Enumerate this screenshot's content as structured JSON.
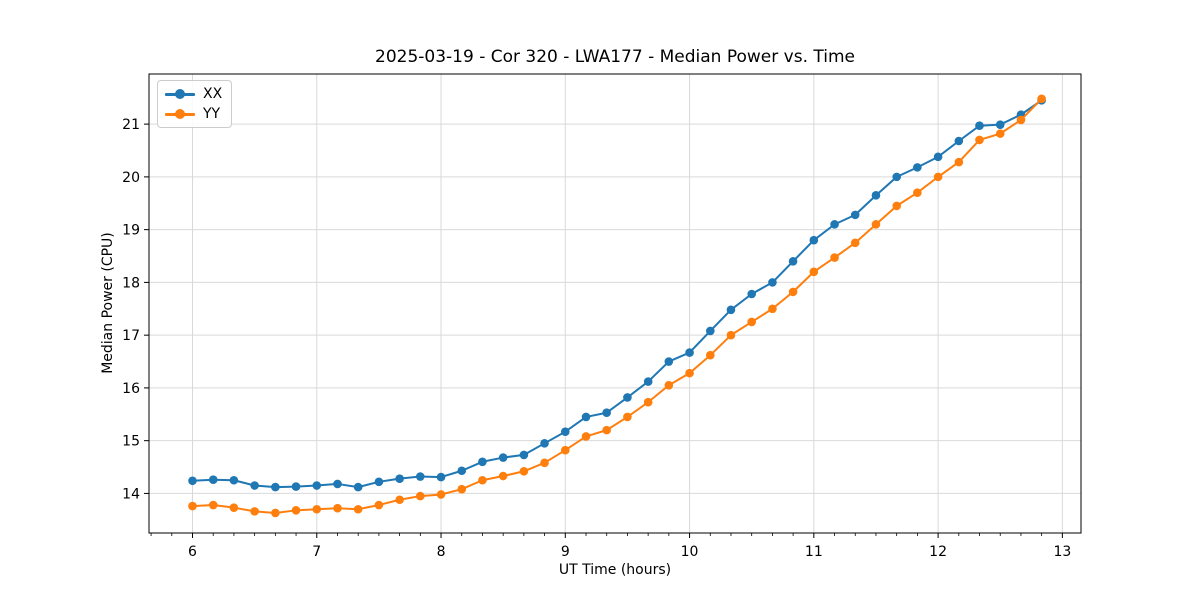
{
  "figure": {
    "background": "#ffffff",
    "axis_color": "#000000",
    "grid_color": "#d9d9d9"
  },
  "chart_data": {
    "type": "line",
    "title": "2025-03-19 - Cor 320 - LWA177 - Median Power vs. Time",
    "xlabel": "UT Time (hours)",
    "ylabel": "Median Power (CPU)",
    "xlim": [
      5.65,
      13.15
    ],
    "ylim": [
      13.25,
      21.95
    ],
    "xticks": [
      6,
      7,
      8,
      9,
      10,
      11,
      12,
      13
    ],
    "yticks": [
      14,
      15,
      16,
      17,
      18,
      19,
      20,
      21
    ],
    "x_minor_step": 0.1666667,
    "grid": true,
    "legend_position": "upper-left",
    "x": [
      6.0,
      6.167,
      6.333,
      6.5,
      6.667,
      6.833,
      7.0,
      7.167,
      7.333,
      7.5,
      7.667,
      7.833,
      8.0,
      8.167,
      8.333,
      8.5,
      8.667,
      8.833,
      9.0,
      9.167,
      9.333,
      9.5,
      9.667,
      9.833,
      10.0,
      10.167,
      10.333,
      10.5,
      10.667,
      10.833,
      11.0,
      11.167,
      11.333,
      11.5,
      11.667,
      11.833,
      12.0,
      12.167,
      12.333,
      12.5,
      12.667,
      12.833
    ],
    "series": [
      {
        "name": "XX",
        "color": "#1f77b4",
        "marker": "circle",
        "values": [
          14.24,
          14.26,
          14.25,
          14.15,
          14.12,
          14.13,
          14.15,
          14.18,
          14.12,
          14.22,
          14.28,
          14.32,
          14.31,
          14.43,
          14.6,
          14.68,
          14.73,
          14.95,
          15.17,
          15.45,
          15.53,
          15.82,
          16.12,
          16.5,
          16.67,
          17.08,
          17.48,
          17.78,
          18.0,
          18.4,
          18.8,
          19.1,
          19.28,
          19.65,
          20.0,
          20.18,
          20.38,
          20.68,
          20.97,
          20.99,
          21.18,
          21.45
        ]
      },
      {
        "name": "YY",
        "color": "#ff7f0e",
        "marker": "circle",
        "values": [
          13.76,
          13.78,
          13.73,
          13.66,
          13.63,
          13.68,
          13.7,
          13.72,
          13.7,
          13.78,
          13.88,
          13.95,
          13.98,
          14.08,
          14.25,
          14.33,
          14.42,
          14.58,
          14.82,
          15.08,
          15.2,
          15.45,
          15.73,
          16.05,
          16.28,
          16.62,
          17.0,
          17.25,
          17.5,
          17.82,
          18.2,
          18.47,
          18.75,
          19.1,
          19.45,
          19.7,
          20.0,
          20.28,
          20.7,
          20.82,
          21.08,
          21.48
        ]
      }
    ]
  }
}
